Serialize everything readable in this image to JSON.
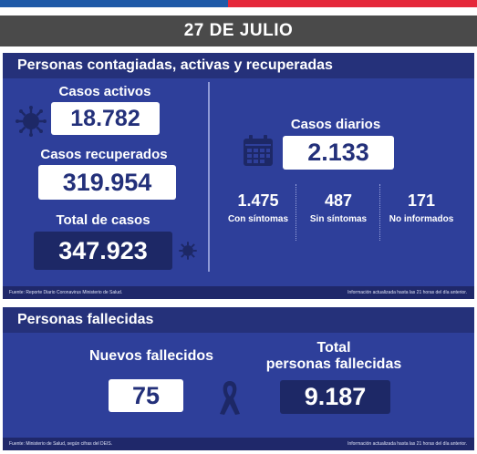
{
  "date": "27 DE JULIO",
  "contagiados": {
    "title": "Personas contagiadas, activas y recuperadas",
    "activos": {
      "label": "Casos activos",
      "value": "18.782"
    },
    "recuperados": {
      "label": "Casos recuperados",
      "value": "319.954"
    },
    "total": {
      "label": "Total de casos",
      "value": "347.923"
    },
    "diarios": {
      "label": "Casos diarios",
      "value": "2.133"
    },
    "breakdown": [
      {
        "value": "1.475",
        "label": "Con síntomas"
      },
      {
        "value": "487",
        "label": "Sin síntomas"
      },
      {
        "value": "171",
        "label": "No informados"
      }
    ],
    "source": "Fuente: Reporte Diario Coronavirus Ministerio de Salud.",
    "update": "Información actualizada hasta las 21 horas del día anterior."
  },
  "fallecidos": {
    "title": "Personas fallecidas",
    "nuevos": {
      "label": "Nuevos fallecidos",
      "value": "75"
    },
    "total": {
      "label_line1": "Total",
      "label_line2": "personas fallecidas",
      "value": "9.187"
    },
    "source": "Fuente: Ministerio de Salud, según cifras del DEIS.",
    "update": "Información actualizada hasta las 21 horas del día anterior."
  },
  "colors": {
    "panel": "#2e3f9a",
    "header": "#25317a",
    "dark_box": "#1d2866",
    "flag_blue": "#1f5aa8",
    "flag_red": "#e5283a"
  },
  "icons": [
    "virus-icon",
    "calendar-icon",
    "mourning-ribbon-icon"
  ]
}
